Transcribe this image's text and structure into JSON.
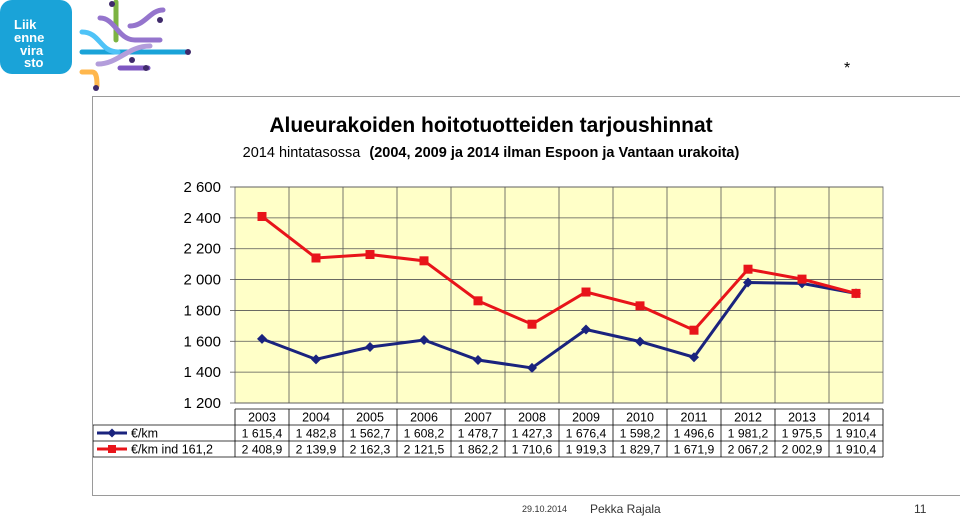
{
  "logo": {
    "lines": [
      "Liik",
      "enne",
      "vira",
      "sto"
    ],
    "bg_color": "#1aa3d8"
  },
  "slide": {
    "marker": "*",
    "footer": {
      "date": "29.10.2014",
      "author": "Pekka Rajala",
      "page": "11"
    }
  },
  "chart_data": {
    "type": "line",
    "title": "Alueurakoiden hoitotuotteiden tarjoushinnat",
    "subtitle_prefix": "2014 hintatasossa",
    "subtitle_bold": "(2004, 2009 ja 2014 ilman Espoon ja Vantaan urakoita)",
    "categories": [
      "2003",
      "2004",
      "2005",
      "2006",
      "2007",
      "2008",
      "2009",
      "2010",
      "2011",
      "2012",
      "2013",
      "2014"
    ],
    "ylim": [
      1200,
      2600
    ],
    "yticks": [
      2600,
      2400,
      2200,
      2000,
      1800,
      1600,
      1400,
      1200
    ],
    "ytick_labels": [
      "2 600",
      "2 400",
      "2 200",
      "2 000",
      "1 800",
      "1 600",
      "1 400",
      "1 200"
    ],
    "plot_bg": "#ffffc8",
    "grid": true,
    "legend": "data-table-below",
    "series": [
      {
        "name": "€/km",
        "marker": "diamond",
        "color": "#1a237e",
        "values": [
          1615.4,
          1482.8,
          1562.7,
          1608.2,
          1478.7,
          1427.3,
          1676.4,
          1598.2,
          1496.6,
          1981.2,
          1975.5,
          1910.4
        ],
        "labels": [
          "1 615,4",
          "1 482,8",
          "1 562,7",
          "1 608,2",
          "1 478,7",
          "1 427,3",
          "1 676,4",
          "1 598,2",
          "1 496,6",
          "1 981,2",
          "1 975,5",
          "1 910,4"
        ]
      },
      {
        "name": "€/km ind 161,2",
        "marker": "square",
        "color": "#e8141a",
        "values": [
          2408.9,
          2139.9,
          2162.3,
          2121.5,
          1862.2,
          1710.6,
          1919.3,
          1829.7,
          1671.9,
          2067.2,
          2002.9,
          1910.4
        ],
        "labels": [
          "2 408,9",
          "2 139,9",
          "2 162,3",
          "2 121,5",
          "1 862,2",
          "1 710,6",
          "1 919,3",
          "1 829,7",
          "1 671,9",
          "2 067,2",
          "2 002,9",
          "1 910,4"
        ]
      }
    ]
  }
}
